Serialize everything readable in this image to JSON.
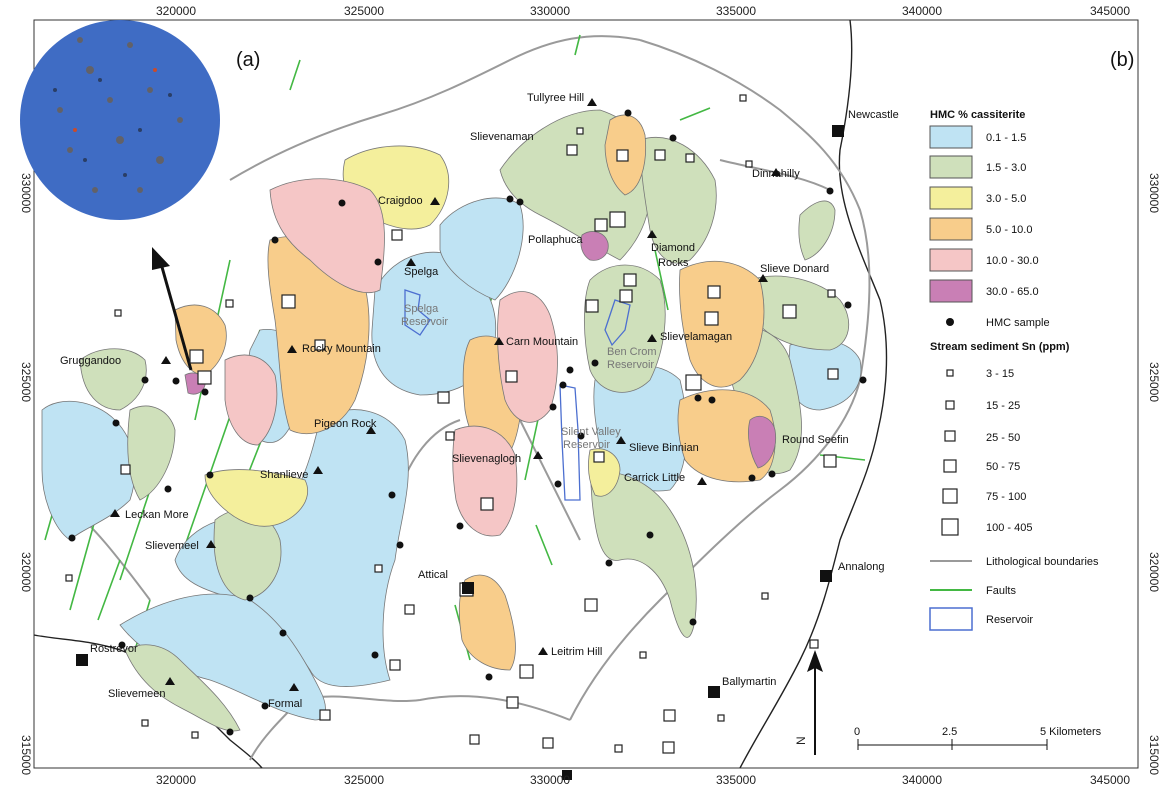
{
  "panel_labels": {
    "a": "(a)",
    "b": "(b)"
  },
  "axes": {
    "x_ticks": [
      "320000",
      "325000",
      "330000",
      "335000",
      "340000",
      "345000"
    ],
    "y_ticks": [
      "330000",
      "325000",
      "320000",
      "315000"
    ]
  },
  "legend": {
    "hmc_title": "HMC % cassiterite",
    "hmc_classes": [
      {
        "label": "0.1 - 1.5",
        "color": "#bfe3f3"
      },
      {
        "label": "1.5 - 3.0",
        "color": "#cfe0bb"
      },
      {
        "label": "3.0 - 5.0",
        "color": "#f4ef9c"
      },
      {
        "label": "5.0 - 10.0",
        "color": "#f8cd8b"
      },
      {
        "label": "10.0 - 30.0",
        "color": "#f5c6c6"
      },
      {
        "label": "30.0 - 65.0",
        "color": "#c97fb5"
      }
    ],
    "hmc_sample": "HMC sample",
    "sn_title": "Stream sediment Sn (ppm)",
    "sn_classes": [
      "3 - 15",
      "15 - 25",
      "25 - 50",
      "50 - 75",
      "75 - 100",
      "100 - 405"
    ],
    "lines": [
      {
        "label": "Lithological boundaries",
        "color": "#9a9a9a"
      },
      {
        "label": "Faults",
        "color": "#43b843"
      },
      {
        "label": "Reservoir",
        "color": "#4c6fd0"
      }
    ]
  },
  "scale_bar": {
    "ticks": [
      "0",
      "2.5",
      "5 Kilometers"
    ]
  },
  "north_label": "N",
  "places": {
    "tullyree_hill": "Tullyree Hill",
    "slievenaman": "Slievenaman",
    "newcastle": "Newcastle",
    "dinnahilly": "Dinnahilly",
    "craigdoo": "Craigdoo",
    "pollaphuca": "Pollaphuca",
    "diamond_rocks": "Diamond\nRocks",
    "slieve_donard": "Slieve Donard",
    "spelga": "Spelga",
    "gruggandoo": "Gruggandoo",
    "rocky_mountain": "Rocky Mountain",
    "carn_mountain": "Carn Mountain",
    "slievelamagan": "Slievelamagan",
    "pigeon_rock": "Pigeon Rock",
    "round_seefin": "Round Seefin",
    "shanlieve": "Shanlieve",
    "slievenaglogh": "Slievenaglogh",
    "slieve_binnian": "Slieve Binnian",
    "carrick_little": "Carrick Little",
    "leckan_more": "Leckan More",
    "slievemeel": "Slievemeel",
    "annalong": "Annalong",
    "attical": "Attical",
    "rostrevor": "Rostrevor",
    "leitrim_hill": "Leitrim Hill",
    "ballymartin": "Ballymartin",
    "slievemeen": "Slievemeen",
    "formal": "Formal"
  },
  "reservoirs": {
    "spelga": "Spelga\nReservoir",
    "ben_crom": "Ben Crom\nReservoir",
    "silent_valley": "Silent Valley\nReservoir"
  }
}
